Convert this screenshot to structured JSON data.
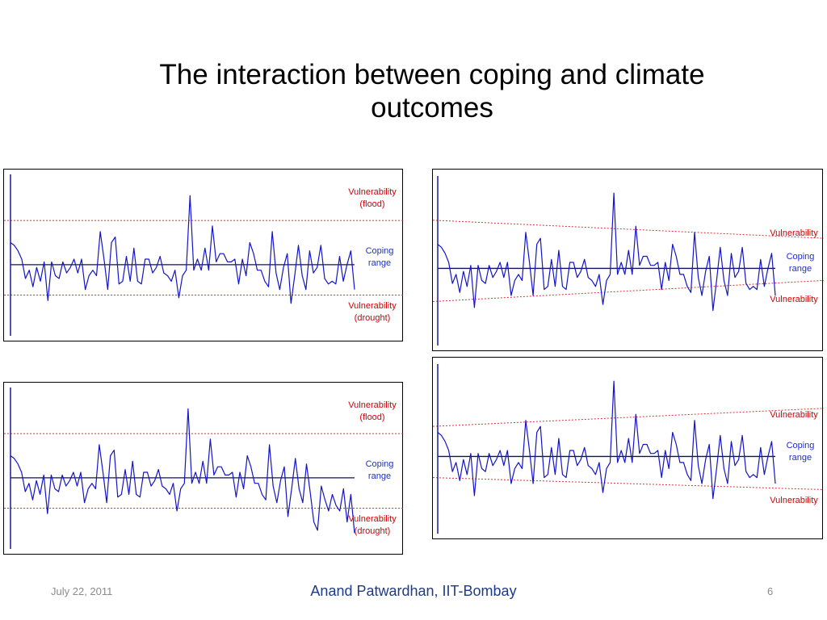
{
  "title": {
    "line1": "The interaction between coping and climate",
    "line2": "outcomes"
  },
  "colors": {
    "series": "#1414c8",
    "threshold": "#e03030",
    "axis": "#1a1aa0",
    "baseline": "#101060",
    "text_red": "#d40000",
    "text_blue": "#1f2fc8"
  },
  "chart_data": [
    {
      "type": "line",
      "position": "top-left",
      "labels": {
        "upper": [
          "Vulnerability",
          "(flood)"
        ],
        "coping": [
          "Coping",
          "range"
        ],
        "lower": [
          "Vulnerability",
          "(drought)"
        ]
      },
      "threshold_upper": [
        8,
        8
      ],
      "threshold_lower": [
        -5.5,
        -5.5
      ],
      "baseline": 0,
      "ylim": [
        -12,
        14
      ],
      "series": [
        {
          "values": [
            4,
            3.5,
            2.5,
            1,
            -2.5,
            -1,
            -4,
            -0.5,
            -3,
            0.5,
            -6.5,
            0.5,
            -2,
            -2.5,
            0.5,
            -1.5,
            -0.5,
            1,
            -1.5,
            1,
            -4.5,
            -2,
            -1,
            -2,
            6,
            1,
            -4.5,
            4,
            5,
            -3.5,
            -3,
            1.5,
            -3,
            3,
            -3,
            -3.5,
            1,
            1,
            -1.5,
            -0.5,
            1.5,
            -1.5,
            -2,
            -3,
            -1,
            -6,
            -2,
            -1,
            12.5,
            -1,
            1,
            -1,
            3,
            -1,
            7,
            0.5,
            2,
            2,
            0.5,
            0.5,
            1,
            -3.5,
            1,
            -2,
            4,
            2,
            -1,
            -1,
            -3,
            -4,
            6,
            -1.5,
            -4.5,
            -0.5,
            2,
            -7,
            -2,
            3.5,
            -2,
            -4.5,
            2.5,
            -1.5,
            -0.5,
            3.5,
            -2.5,
            -3.5,
            -3,
            -3.5,
            1.5,
            -3,
            0,
            2.5,
            -4.5
          ]
        }
      ]
    },
    {
      "type": "line",
      "position": "top-right",
      "labels": {
        "upper": [
          "Vulnerability"
        ],
        "coping": [
          "Coping",
          "range"
        ],
        "lower": [
          "Vulnerability"
        ]
      },
      "threshold_upper": [
        8,
        5
      ],
      "threshold_lower": [
        -5.5,
        -2
      ],
      "baseline": 0,
      "ylim": [
        -12,
        14
      ],
      "series": [
        {
          "values": [
            4,
            3.5,
            2.5,
            1,
            -2.5,
            -1,
            -4,
            -0.5,
            -3,
            0.5,
            -6.5,
            0.5,
            -2,
            -2.5,
            0.5,
            -1.5,
            -0.5,
            1,
            -1.5,
            1,
            -4.5,
            -2,
            -1,
            -2,
            6,
            1,
            -4.5,
            4,
            5,
            -3.5,
            -3,
            1.5,
            -3,
            3,
            -3,
            -3.5,
            1,
            1,
            -1.5,
            -0.5,
            1.5,
            -1.5,
            -2,
            -3,
            -1,
            -6,
            -2,
            -1,
            12.5,
            -1,
            1,
            -1,
            3,
            -1,
            7,
            0.5,
            2,
            2,
            0.5,
            0.5,
            1,
            -3.5,
            1,
            -2,
            4,
            2,
            -1,
            -1,
            -3,
            -4,
            6,
            -1.5,
            -4.5,
            -0.5,
            2,
            -7,
            -2,
            3.5,
            -2,
            -4.5,
            2.5,
            -1.5,
            -0.5,
            3.5,
            -2.5,
            -3.5,
            -3,
            -3.5,
            1.5,
            -3,
            0,
            2.5,
            -4.5
          ]
        }
      ]
    },
    {
      "type": "line",
      "position": "bottom-left",
      "labels": {
        "upper": [
          "Vulnerability",
          "(flood)"
        ],
        "coping": [
          "Coping",
          "range"
        ],
        "lower": [
          "Vulnerability",
          "(drought)"
        ]
      },
      "threshold_upper": [
        8,
        8
      ],
      "threshold_lower": [
        -5.5,
        -5.5
      ],
      "baseline": 0,
      "ylim": [
        -12,
        14
      ],
      "series": [
        {
          "values": [
            4,
            3.5,
            2.5,
            1,
            -2.5,
            -1,
            -4,
            -0.5,
            -3,
            0.5,
            -6.5,
            0.5,
            -2,
            -2.5,
            0.5,
            -1.5,
            -0.5,
            1,
            -1.5,
            1,
            -4.5,
            -2,
            -1,
            -2,
            6,
            1,
            -4.5,
            4,
            5,
            -3.5,
            -3,
            1.5,
            -3,
            3,
            -3,
            -3.5,
            1,
            1,
            -1.5,
            -0.5,
            1.5,
            -1.5,
            -2,
            -3,
            -1,
            -6,
            -2,
            -1,
            12.5,
            -1,
            1,
            -1,
            3,
            -1,
            7,
            0.5,
            2,
            2,
            0.5,
            0.5,
            1,
            -3.5,
            1,
            -2,
            4,
            2,
            -1,
            -1,
            -3,
            -4,
            6,
            -1.5,
            -4.5,
            -0.5,
            2,
            -7,
            -2,
            3.5,
            -2,
            -4.5,
            2.5,
            -2.5,
            -8,
            -9.5,
            -1.5,
            -4,
            -6,
            -3,
            -5,
            -6,
            -2,
            -8,
            -3,
            -10
          ]
        }
      ]
    },
    {
      "type": "line",
      "position": "bottom-right",
      "labels": {
        "upper": [
          "Vulnerability"
        ],
        "coping": [
          "Coping",
          "range"
        ],
        "lower": [
          "Vulnerability"
        ]
      },
      "threshold_upper": [
        5,
        8
      ],
      "threshold_lower": [
        -3.5,
        -5.5
      ],
      "baseline": 0,
      "ylim": [
        -12,
        14
      ],
      "series": [
        {
          "values": [
            4,
            3.5,
            2.5,
            1,
            -2.5,
            -1,
            -4,
            -0.5,
            -3,
            0.5,
            -6.5,
            0.5,
            -2,
            -2.5,
            0.5,
            -1.5,
            -0.5,
            1,
            -1.5,
            1,
            -4.5,
            -2,
            -1,
            -2,
            6,
            1,
            -4.5,
            4,
            5,
            -3.5,
            -3,
            1.5,
            -3,
            3,
            -3,
            -3.5,
            1,
            1,
            -1.5,
            -0.5,
            1.5,
            -1.5,
            -2,
            -3,
            -1,
            -6,
            -2,
            -1,
            12.5,
            -1,
            1,
            -1,
            3,
            -1,
            7,
            0.5,
            2,
            2,
            0.5,
            0.5,
            1,
            -3.5,
            1,
            -2,
            4,
            2,
            -1,
            -1,
            -3,
            -4,
            6,
            -1.5,
            -4.5,
            -0.5,
            2,
            -7,
            -2,
            3.5,
            -2,
            -4.5,
            2.5,
            -1.5,
            -0.5,
            3.5,
            -2.5,
            -3.5,
            -3,
            -3.5,
            1.5,
            -3,
            0,
            2.5,
            -4.5
          ]
        }
      ]
    }
  ],
  "footer": {
    "date": "July 22, 2011",
    "author": "Anand Patwardhan, IIT-Bombay",
    "page": "6"
  }
}
